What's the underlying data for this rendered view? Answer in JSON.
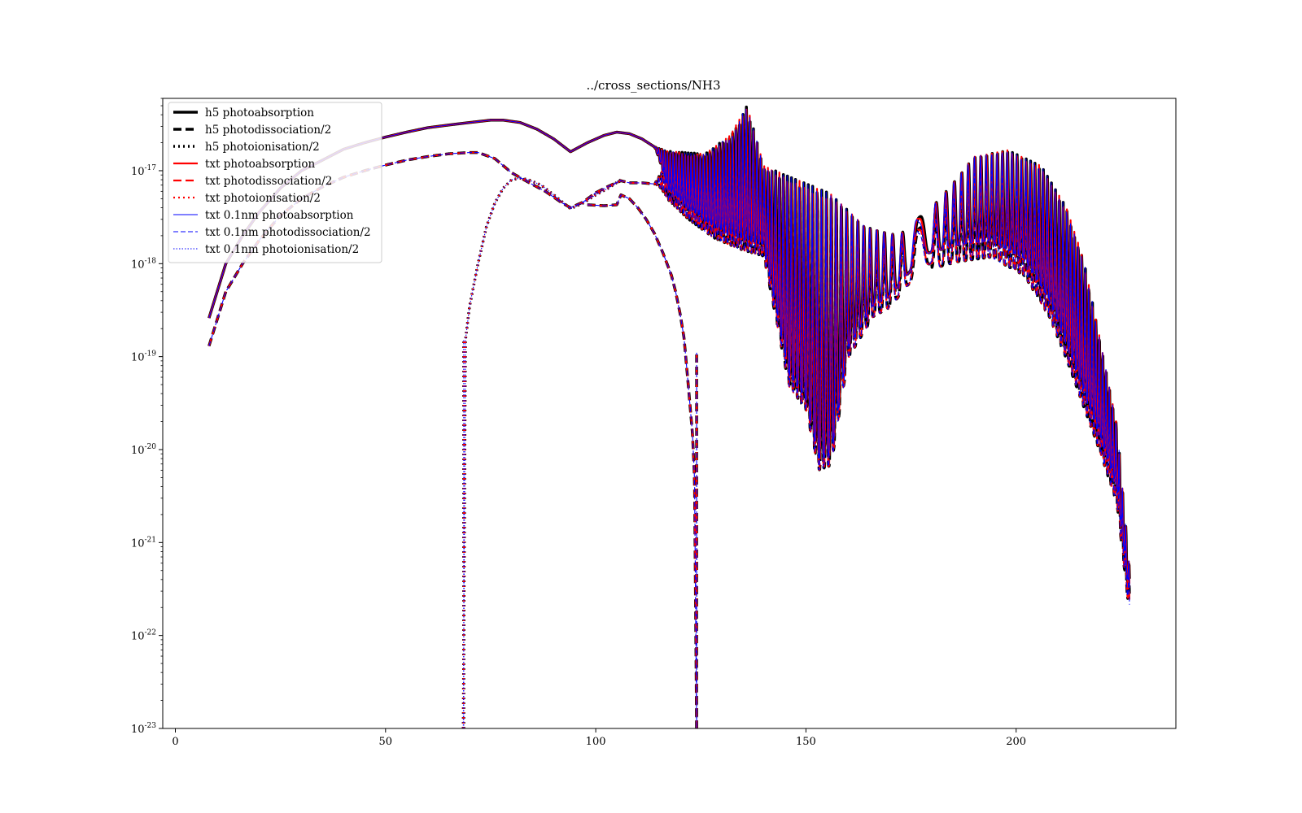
{
  "chart_data": {
    "type": "line",
    "title": "../cross_sections/NH3",
    "xlabel": "",
    "ylabel": "",
    "xlim": [
      -3,
      238
    ],
    "ylim": [
      1e-23,
      6e-17
    ],
    "yscale": "log",
    "grid": false,
    "legend_position": "top-left",
    "x_ticks": [
      0,
      50,
      100,
      150,
      200
    ],
    "y_ticks": [
      {
        "value": 1e-23,
        "base": "10",
        "exp": "-23"
      },
      {
        "value": 1e-22,
        "base": "10",
        "exp": "-22"
      },
      {
        "value": 1e-21,
        "base": "10",
        "exp": "-21"
      },
      {
        "value": 1e-20,
        "base": "10",
        "exp": "-20"
      },
      {
        "value": 1e-19,
        "base": "10",
        "exp": "-19"
      },
      {
        "value": 1e-18,
        "base": "10",
        "exp": "-18"
      },
      {
        "value": 1e-17,
        "base": "10",
        "exp": "-17"
      }
    ],
    "series": [
      {
        "name": "h5 photoabsorption",
        "color": "#000000",
        "style": "solid",
        "width": 3.5
      },
      {
        "name": "h5 photodissociation/2",
        "color": "#000000",
        "style": "dashed",
        "width": 3.5
      },
      {
        "name": "h5 photoionisation/2",
        "color": "#000000",
        "style": "dotted",
        "width": 3.5
      },
      {
        "name": "txt photoabsorption",
        "color": "#ff0000",
        "style": "solid",
        "width": 2.2
      },
      {
        "name": "txt photodissociation/2",
        "color": "#ff0000",
        "style": "dashed",
        "width": 2.2
      },
      {
        "name": "txt photoionisation/2",
        "color": "#ff0000",
        "style": "dotted",
        "width": 2.2
      },
      {
        "name": "txt 0.1nm photoabsorption",
        "color": "#0000ff",
        "style": "solid",
        "width": 1.1
      },
      {
        "name": "txt 0.1nm photodissociation/2",
        "color": "#0000ff",
        "style": "dashed",
        "width": 1.1
      },
      {
        "name": "txt 0.1nm photoionisation/2",
        "color": "#0000ff",
        "style": "dotted",
        "width": 1.1
      }
    ],
    "curves": {
      "photoabsorption_smooth": {
        "x": [
          8,
          12,
          16,
          20,
          25,
          30,
          35,
          40,
          45,
          50,
          55,
          60,
          65,
          70,
          75,
          78,
          82,
          86,
          90,
          94,
          98,
          102,
          105,
          108,
          111,
          114
        ],
        "y": [
          2.6e-19,
          1e-18,
          2e-18,
          3.6e-18,
          6.5e-18,
          1e-17,
          1.3e-17,
          1.7e-17,
          2e-17,
          2.3e-17,
          2.6e-17,
          2.9e-17,
          3.1e-17,
          3.3e-17,
          3.5e-17,
          3.5e-17,
          3.3e-17,
          2.8e-17,
          2.2e-17,
          1.6e-17,
          2e-17,
          2.4e-17,
          2.6e-17,
          2.5e-17,
          2.2e-17,
          1.8e-17
        ]
      },
      "photodissociation_smooth": {
        "x": [
          8,
          12,
          16,
          20,
          25,
          30,
          35,
          40,
          45,
          50,
          55,
          60,
          65,
          70,
          72,
          76,
          80,
          84,
          88,
          92,
          94,
          97,
          100,
          103,
          106,
          108,
          111,
          114
        ],
        "y": [
          1.3e-19,
          5e-19,
          1e-18,
          1.8e-18,
          3.3e-18,
          5e-18,
          6.7e-18,
          8.5e-18,
          1e-17,
          1.15e-17,
          1.3e-17,
          1.42e-17,
          1.52e-17,
          1.57e-17,
          1.57e-17,
          1.35e-17,
          9.5e-18,
          7.5e-18,
          6e-18,
          4.5e-18,
          4e-18,
          4.6e-18,
          5.8e-18,
          6.8e-18,
          7.8e-18,
          7.4e-18,
          7.4e-18,
          7.2e-18
        ]
      },
      "photoionisation_upper": {
        "x": [
          68.5,
          69,
          70,
          72,
          74,
          76,
          78,
          80,
          82,
          84,
          87,
          90,
          94,
          97,
          100,
          103,
          106
        ],
        "y": [
          1e-23,
          1.5e-19,
          3.5e-19,
          1e-18,
          2.5e-18,
          4.5e-18,
          6.5e-18,
          8e-18,
          8.3e-18,
          8e-18,
          7e-18,
          5.5e-18,
          3.9e-18,
          4.5e-18,
          5.5e-18,
          6.5e-18,
          8e-18
        ]
      },
      "photodissociation_lower": {
        "x": [
          98,
          102,
          105,
          106,
          108,
          110,
          112,
          114,
          116,
          118,
          119,
          120,
          121,
          122,
          123,
          123.5,
          124
        ],
        "y": [
          4.3e-18,
          4.2e-18,
          4.3e-18,
          5.5e-18,
          5e-18,
          4e-18,
          3e-18,
          2.1e-18,
          1.3e-18,
          7.5e-19,
          5e-19,
          3e-19,
          1.6e-19,
          5e-20,
          1.5e-20,
          5e-21,
          1e-23
        ]
      }
    }
  }
}
